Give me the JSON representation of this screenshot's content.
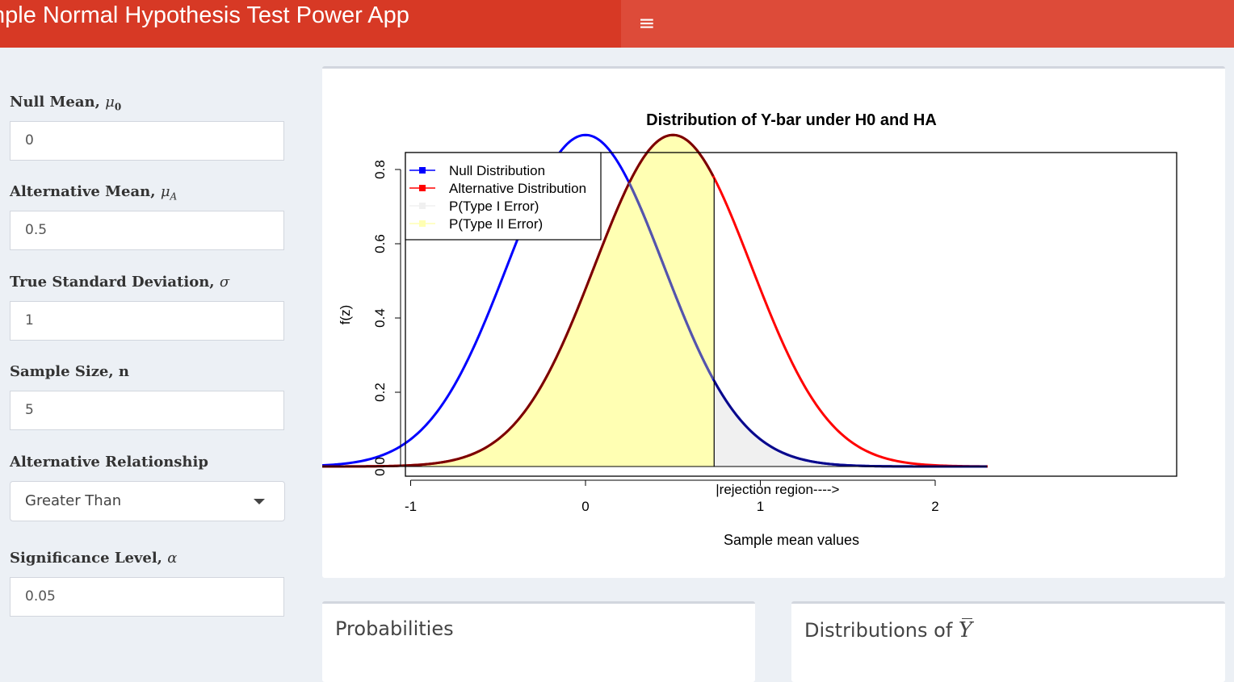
{
  "header": {
    "title": "nple Normal Hypothesis Test Power App",
    "menu_icon": "hamburger-icon"
  },
  "sidebar": {
    "null_mean": {
      "label": "Null Mean,",
      "symbol": "μ",
      "sub": "0",
      "value": "0"
    },
    "alt_mean": {
      "label": "Alternative Mean,",
      "symbol": "μ",
      "sub": "A",
      "value": "0.5"
    },
    "sd": {
      "label": "True Standard Deviation,",
      "symbol": "σ",
      "value": "1"
    },
    "n": {
      "label": "Sample Size, n",
      "value": "5"
    },
    "alt_rel": {
      "label": "Alternative Relationship",
      "selected": "Greater Than"
    },
    "alpha": {
      "label": "Significance Level,",
      "symbol": "α",
      "value": "0.05"
    }
  },
  "boxes": {
    "probabilities": "Probabilities",
    "distributions_prefix": "Distributions of",
    "distributions_symbol": "Y"
  },
  "colors": {
    "header": "#d73925",
    "header_right": "#dd4b39",
    "null": "#0000ff",
    "alt": "#ff0000",
    "type1": "#f0f0f0",
    "type2": "#ffffb3"
  },
  "chart_data": {
    "type": "line",
    "title": "Distribution of Y-bar under H0 and HA",
    "xlabel": "Sample mean values",
    "ylabel": "f(z)",
    "xlim": [
      -1.8,
      2.3
    ],
    "ylim": [
      0,
      0.9
    ],
    "xticks": [
      "-1",
      "0",
      "1",
      "2"
    ],
    "yticks": [
      "0.0",
      "0.2",
      "0.4",
      "0.6",
      "0.8"
    ],
    "series": [
      {
        "name": "Null Distribution",
        "distribution": "normal",
        "mean": 0,
        "sd": 0.4472,
        "color": "#0000ff"
      },
      {
        "name": "Alternative Distribution",
        "distribution": "normal",
        "mean": 0.5,
        "sd": 0.4472,
        "color": "#ff0000"
      }
    ],
    "legend": [
      "Null Distribution",
      "Alternative Distribution",
      "P(Type I Error)",
      "P(Type II Error)"
    ],
    "legend_position": "top-left",
    "critical_value": 0.7356,
    "annotation": "|rejection region---->",
    "shaded_regions": [
      {
        "name": "P(Type I Error)",
        "under": "Null Distribution",
        "from": 0.7356,
        "to": 2.3
      },
      {
        "name": "P(Type II Error)",
        "under": "Alternative Distribution",
        "from": -1.8,
        "to": 0.7356
      }
    ]
  }
}
